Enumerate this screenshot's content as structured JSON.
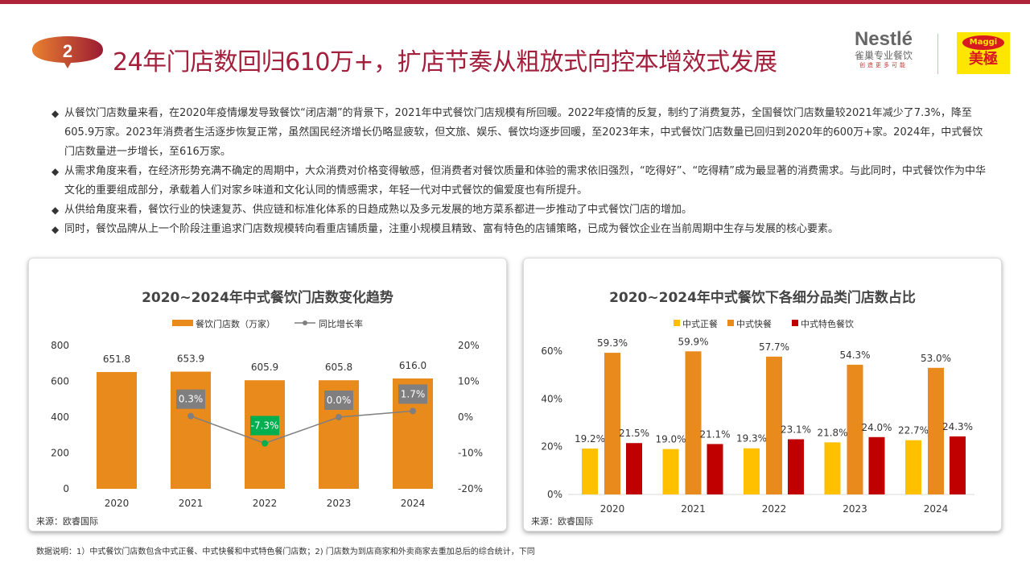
{
  "header": {
    "number": "2",
    "title": "24年门店数回归610万+，扩店节奏从粗放式向控本增效式发展",
    "logo_nestle": {
      "brand": "Nestlé",
      "sub": "雀巢专业餐饮",
      "slogan": "创造更多可能"
    },
    "logo_maggi": {
      "brand": "Maggi",
      "sub": "美極"
    }
  },
  "bullets": [
    "从餐饮门店数量来看，在2020年疫情爆发导致餐饮“闭店潮”的背景下，2021年中式餐饮门店规模有所回暖。2022年疫情的反复，制约了消费复苏，全国餐饮门店数量较2021年减少了7.3%，降至605.9万家。2023年消费者生活逐步恢复正常，虽然国民经济增长仍略显疲软，但文旅、娱乐、餐饮均逐步回暖，至2023年末，中式餐饮门店数量已回归到2020年的600万+家。2024年，中式餐饮门店数量进一步增长，至616万家。",
    "从需求角度来看，在经济形势充满不确定的周期中，大众消费对价格变得敏感，但消费者对餐饮质量和体验的需求依旧强烈，“吃得好”、“吃得精”成为最显著的消费需求。与此同时，中式餐饮作为中华文化的重要组成部分，承载着人们对家乡味道和文化认同的情感需求，年轻一代对中式餐饮的偏爱度也有所提升。",
    "从供给角度来看，餐饮行业的快速复苏、供应链和标准化体系的日趋成熟以及多元发展的地方菜系都进一步推动了中式餐饮门店的增加。",
    "同时，餐饮品牌从上一个阶段注重追求门店数规模转向看重店铺质量，注重小规模且精致、富有特色的店铺策略，已成为餐饮企业在当前周期中生存与发展的核心要素。"
  ],
  "footer_note": "数据说明：1）中式餐饮门店数包含中式正餐、中式快餐和中式特色餐门店数；2) 门店数为到店商家和外卖商家去重加总后的综合统计，下同",
  "chart_data": [
    {
      "type": "bar+line",
      "title": "2020~2024年中式餐饮门店数变化趋势",
      "source": "来源：欧睿国际",
      "categories": [
        "2020",
        "2021",
        "2022",
        "2023",
        "2024"
      ],
      "series": [
        {
          "name": "餐饮门店数（万家）",
          "type": "bar",
          "axis": "left",
          "values": [
            651.8,
            653.9,
            605.9,
            605.8,
            616.0
          ],
          "labels": [
            "651.8",
            "653.9",
            "605.9",
            "605.8",
            "616.0"
          ],
          "color": "#e98a1c"
        },
        {
          "name": "同比增长率",
          "type": "line",
          "axis": "right",
          "values": [
            null,
            0.3,
            -7.3,
            0.0,
            1.7
          ],
          "labels": [
            "",
            "0.3%",
            "-7.3%",
            "0.0%",
            "1.7%"
          ],
          "color": "#7f7f7f"
        }
      ],
      "yleft": {
        "range": [
          0,
          800
        ],
        "ticks": [
          "0",
          "200",
          "400",
          "600",
          "800"
        ]
      },
      "yright": {
        "range": [
          -20,
          20
        ],
        "ticks": [
          "-20%",
          "-10%",
          "0%",
          "10%",
          "20%"
        ]
      },
      "legend": "top",
      "grid": false
    },
    {
      "type": "bar",
      "title": "2020~2024年中式餐饮下各细分品类门店数占比",
      "source": "来源：欧睿国际",
      "categories": [
        "2020",
        "2021",
        "2022",
        "2023",
        "2024"
      ],
      "series": [
        {
          "name": "中式正餐",
          "values": [
            19.2,
            19.0,
            19.3,
            21.8,
            22.7
          ],
          "color": "#ffc000"
        },
        {
          "name": "中式快餐",
          "values": [
            59.3,
            59.9,
            57.7,
            54.3,
            53.0
          ],
          "color": "#e98a1c"
        },
        {
          "name": "中式特色餐饮",
          "values": [
            21.5,
            21.1,
            23.1,
            24.0,
            24.3
          ],
          "color": "#c00000"
        }
      ],
      "y": {
        "range": [
          0,
          60
        ],
        "ticks": [
          "0%",
          "20%",
          "40%",
          "60%"
        ]
      },
      "legend": "top",
      "grid": false
    }
  ]
}
